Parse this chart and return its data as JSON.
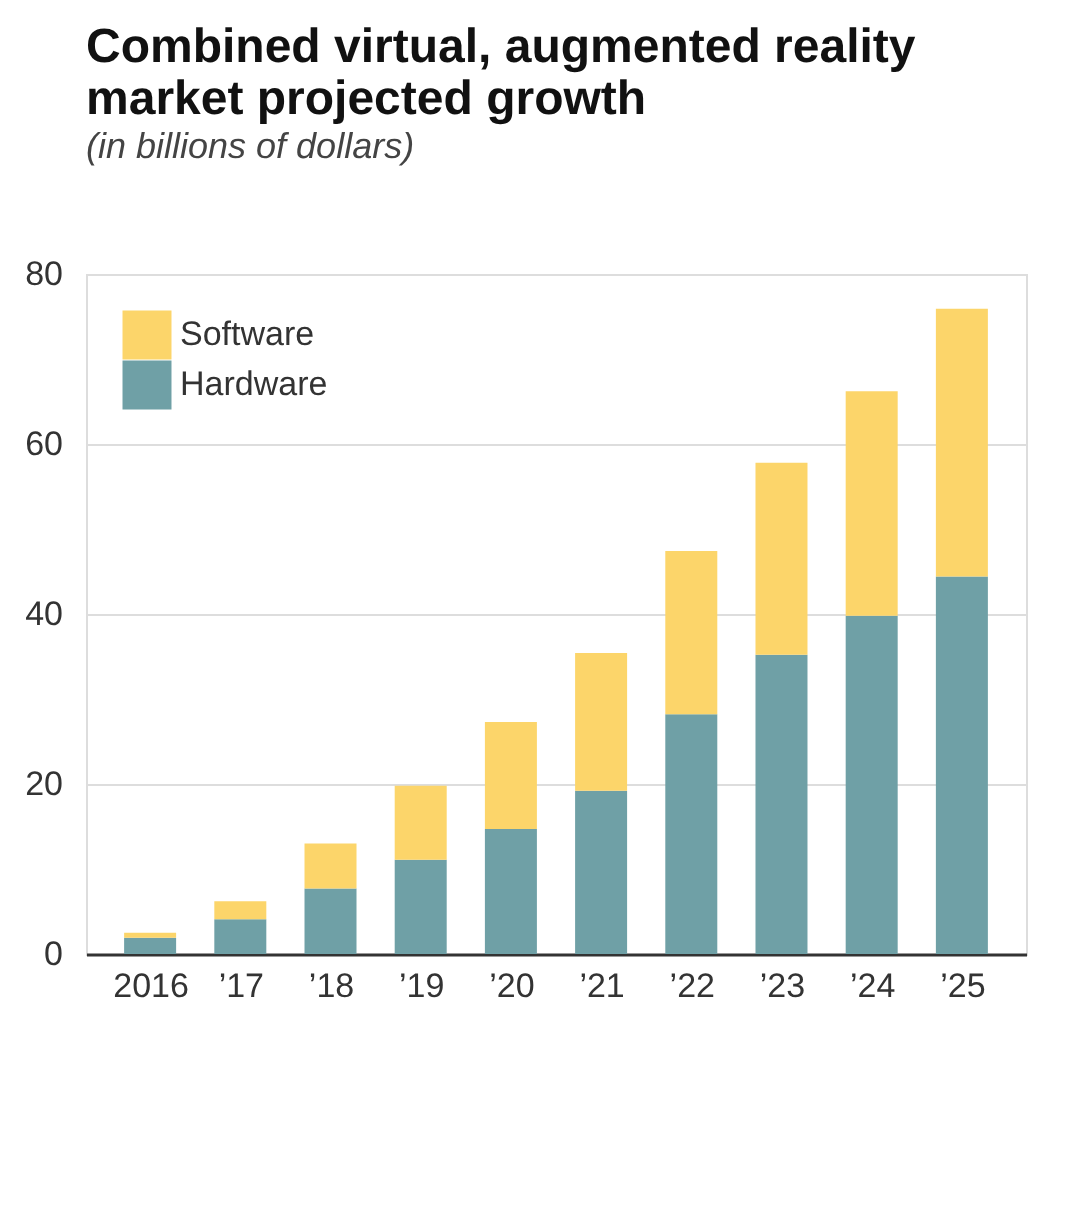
{
  "chart_data": {
    "type": "bar",
    "title": [
      "Combined virtual, augmented reality",
      "market projected growth"
    ],
    "subtitle": "(in billions of dollars)",
    "categories": [
      "2016",
      "’17",
      "’18",
      "’19",
      "’20",
      "’21",
      "’22",
      "’23",
      "’24",
      "’25"
    ],
    "stacked": true,
    "series": [
      {
        "name": "Hardware",
        "color": "#6fa0a6",
        "values": [
          1.9,
          4.1,
          7.7,
          11.1,
          14.7,
          19.2,
          28.2,
          35.2,
          39.8,
          44.4
        ]
      },
      {
        "name": "Software",
        "color": "#fcd56a",
        "values": [
          0.6,
          2.1,
          5.3,
          8.7,
          12.6,
          16.2,
          19.2,
          22.6,
          26.4,
          31.5
        ]
      }
    ],
    "ylim": [
      0,
      80
    ],
    "yticks": [
      0,
      20,
      40,
      60,
      80
    ],
    "grid": "y",
    "legend": "top left"
  }
}
